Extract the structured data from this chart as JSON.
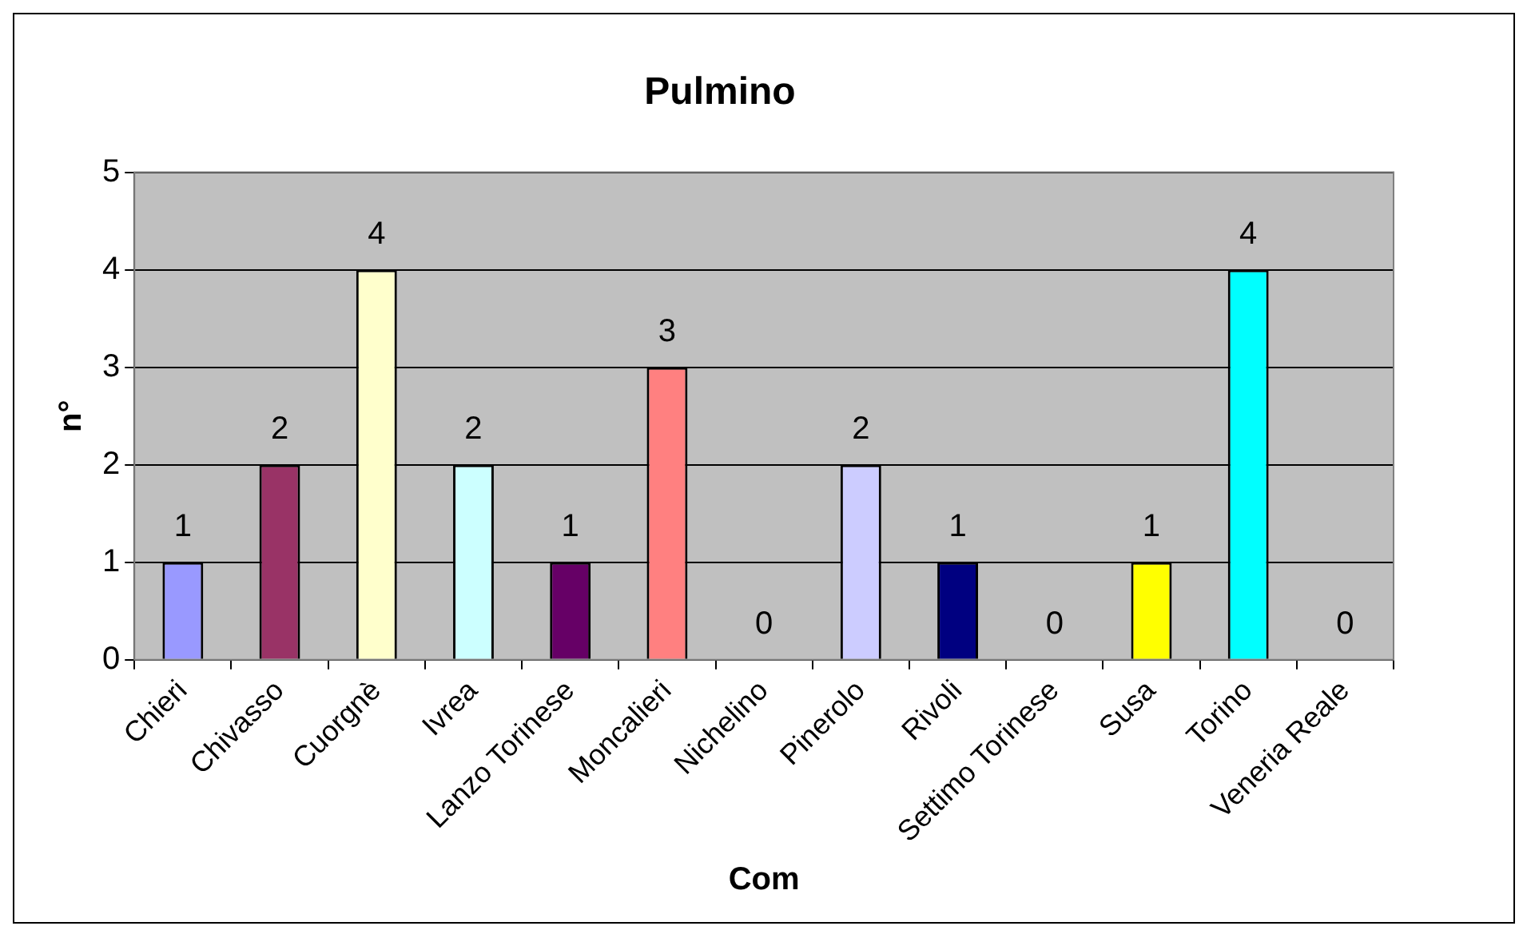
{
  "chart_data": {
    "type": "bar",
    "title": "Pulmino",
    "xlabel": "Com",
    "ylabel": "n°",
    "categories": [
      "Chieri",
      "Chivasso",
      "Cuorgnè",
      "Ivrea",
      "Lanzo Torinese",
      "Moncalieri",
      "Nichelino",
      "Pinerolo",
      "Rivoli",
      "Settimo Torinese",
      "Susa",
      "Torino",
      "Veneria Reale"
    ],
    "values": [
      1,
      2,
      4,
      2,
      1,
      3,
      0,
      2,
      1,
      0,
      1,
      4,
      0
    ],
    "colors": [
      "#9999ff",
      "#993366",
      "#ffffcc",
      "#ccffff",
      "#660066",
      "#ff8080",
      "#0066cc",
      "#ccccff",
      "#000080",
      "#ff00ff",
      "#ffff00",
      "#00ffff",
      "#800080"
    ],
    "ylim": [
      0,
      5
    ],
    "yticks": [
      0,
      1,
      2,
      3,
      4,
      5
    ],
    "grid": "y",
    "legend": false,
    "data_labels": true
  }
}
